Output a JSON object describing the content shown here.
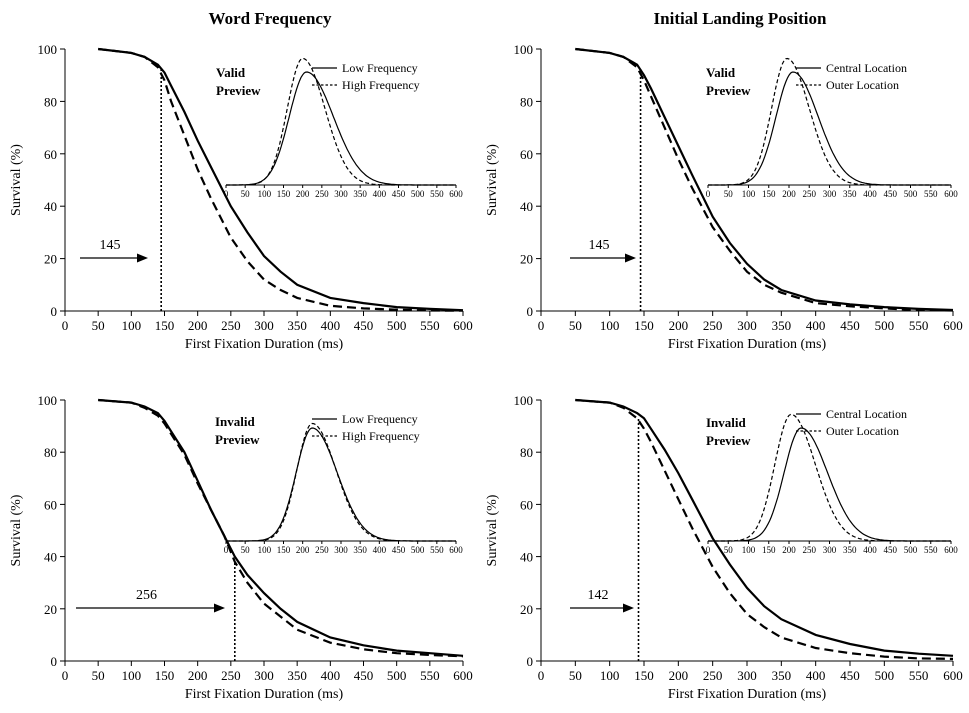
{
  "column_titles": [
    "Word Frequency",
    "Initial Landing Position"
  ],
  "chart_data": [
    {
      "type": "line",
      "xlabel": "First Fixation Duration (ms)",
      "ylabel": "Survival (%)",
      "xlim": [
        0,
        600
      ],
      "ylim": [
        0,
        100
      ],
      "xticks": [
        0,
        50,
        100,
        150,
        200,
        250,
        300,
        350,
        400,
        450,
        500,
        550,
        600
      ],
      "yticks": [
        0,
        20,
        40,
        60,
        80,
        100
      ],
      "condition": [
        "Valid",
        "Preview"
      ],
      "divergence_point": 145,
      "divergence_label": "145",
      "series": [
        {
          "name": "Low Frequency",
          "style": "solid",
          "x": [
            50,
            100,
            120,
            140,
            150,
            160,
            180,
            200,
            220,
            250,
            275,
            300,
            325,
            350,
            400,
            450,
            500,
            550,
            600
          ],
          "y": [
            100,
            98.5,
            97,
            94,
            91,
            86,
            76,
            65,
            55,
            40,
            30,
            21,
            15,
            10,
            5,
            3,
            1.5,
            0.8,
            0.3
          ]
        },
        {
          "name": "High Frequency",
          "style": "dashed",
          "x": [
            50,
            100,
            120,
            140,
            150,
            160,
            180,
            200,
            220,
            250,
            275,
            300,
            325,
            350,
            400,
            450,
            500,
            550,
            600
          ],
          "y": [
            100,
            98.5,
            97,
            93,
            88,
            80,
            67,
            54,
            43,
            28,
            19,
            12,
            8,
            5,
            2,
            1,
            0.5,
            0.2,
            0.1
          ]
        }
      ],
      "inset": {
        "xticks": [
          0,
          50,
          100,
          150,
          200,
          250,
          300,
          350,
          400,
          450,
          500,
          550,
          600
        ],
        "series": [
          {
            "name": "Low Frequency",
            "style": "solid",
            "mode": 210,
            "peak": 1.0,
            "sl": 45,
            "sr": 70
          },
          {
            "name": "High Frequency",
            "style": "dashed",
            "mode": 200,
            "peak": 1.12,
            "sl": 40,
            "sr": 58
          }
        ]
      }
    },
    {
      "type": "line",
      "xlabel": "First Fixation Duration (ms)",
      "ylabel": "Survival (%)",
      "xlim": [
        0,
        600
      ],
      "ylim": [
        0,
        100
      ],
      "xticks": [
        0,
        50,
        100,
        150,
        200,
        250,
        300,
        350,
        400,
        450,
        500,
        550,
        600
      ],
      "yticks": [
        0,
        20,
        40,
        60,
        80,
        100
      ],
      "condition": [
        "Valid",
        "Preview"
      ],
      "divergence_point": 145,
      "divergence_label": "145",
      "series": [
        {
          "name": "Central Location",
          "style": "solid",
          "x": [
            50,
            100,
            120,
            140,
            150,
            160,
            180,
            200,
            220,
            250,
            275,
            300,
            325,
            350,
            400,
            450,
            500,
            550,
            600
          ],
          "y": [
            100,
            98.5,
            97,
            94,
            90,
            85,
            74,
            63,
            52,
            36,
            26,
            18,
            12,
            8,
            4,
            2.5,
            1.5,
            0.8,
            0.4
          ]
        },
        {
          "name": "Outer Location",
          "style": "dashed",
          "x": [
            50,
            100,
            120,
            140,
            150,
            160,
            180,
            200,
            220,
            250,
            275,
            300,
            325,
            350,
            400,
            450,
            500,
            550,
            600
          ],
          "y": [
            100,
            98.5,
            97,
            93,
            88,
            82,
            70,
            58,
            47,
            32,
            23,
            15,
            10,
            7,
            3,
            1.8,
            1,
            0.4,
            0.2
          ]
        }
      ],
      "inset": {
        "xticks": [
          0,
          50,
          100,
          150,
          200,
          250,
          300,
          350,
          400,
          450,
          500,
          550,
          600
        ],
        "series": [
          {
            "name": "Central Location",
            "style": "solid",
            "mode": 210,
            "peak": 1.0,
            "sl": 42,
            "sr": 62
          },
          {
            "name": "Outer Location",
            "style": "dashed",
            "mode": 195,
            "peak": 1.12,
            "sl": 38,
            "sr": 55
          }
        ]
      }
    },
    {
      "type": "line",
      "xlabel": "First Fixation Duration (ms)",
      "ylabel": "Survival (%)",
      "xlim": [
        0,
        600
      ],
      "ylim": [
        0,
        100
      ],
      "xticks": [
        0,
        50,
        100,
        150,
        200,
        250,
        300,
        350,
        400,
        450,
        500,
        550,
        600
      ],
      "yticks": [
        0,
        20,
        40,
        60,
        80,
        100
      ],
      "condition": [
        "Invalid",
        "Preview"
      ],
      "divergence_point": 256,
      "divergence_label": "256",
      "series": [
        {
          "name": "Low Frequency",
          "style": "solid",
          "x": [
            50,
            100,
            120,
            140,
            150,
            160,
            180,
            200,
            220,
            240,
            256,
            275,
            300,
            325,
            350,
            400,
            450,
            500,
            550,
            600
          ],
          "y": [
            100,
            99,
            97.5,
            95,
            92,
            88,
            80,
            69,
            58,
            48,
            40,
            33,
            26,
            20,
            15,
            9,
            6,
            4,
            3,
            2
          ]
        },
        {
          "name": "High Frequency",
          "style": "dashed",
          "x": [
            50,
            100,
            120,
            140,
            150,
            160,
            180,
            200,
            220,
            240,
            256,
            275,
            300,
            325,
            350,
            400,
            450,
            500,
            550,
            600
          ],
          "y": [
            100,
            99,
            97,
            94,
            91,
            87,
            79,
            68,
            58,
            48,
            38,
            30,
            22,
            17,
            12,
            7,
            4.5,
            3,
            2.3,
            1.8
          ]
        }
      ],
      "inset": {
        "xticks": [
          0,
          50,
          100,
          150,
          200,
          250,
          300,
          350,
          400,
          450,
          500,
          550,
          600
        ],
        "series": [
          {
            "name": "Low Frequency",
            "style": "solid",
            "mode": 225,
            "peak": 1.0,
            "sl": 42,
            "sr": 65
          },
          {
            "name": "High Frequency",
            "style": "dashed",
            "mode": 225,
            "peak": 1.04,
            "sl": 40,
            "sr": 62
          }
        ]
      }
    },
    {
      "type": "line",
      "xlabel": "First Fixation Duration (ms)",
      "ylabel": "Survival (%)",
      "xlim": [
        0,
        600
      ],
      "ylim": [
        0,
        100
      ],
      "xticks": [
        0,
        50,
        100,
        150,
        200,
        250,
        300,
        350,
        400,
        450,
        500,
        550,
        600
      ],
      "yticks": [
        0,
        20,
        40,
        60,
        80,
        100
      ],
      "condition": [
        "Invalid",
        "Preview"
      ],
      "divergence_point": 142,
      "divergence_label": "142",
      "series": [
        {
          "name": "Central Location",
          "style": "solid",
          "x": [
            50,
            100,
            120,
            140,
            150,
            160,
            180,
            200,
            220,
            250,
            275,
            300,
            325,
            350,
            400,
            450,
            500,
            550,
            600
          ],
          "y": [
            100,
            99,
            97.5,
            95,
            93,
            89,
            81,
            72,
            62,
            47,
            37,
            28,
            21,
            16,
            10,
            6.5,
            4,
            2.8,
            2
          ]
        },
        {
          "name": "Outer Location",
          "style": "dashed",
          "x": [
            50,
            100,
            120,
            140,
            150,
            160,
            180,
            200,
            220,
            250,
            275,
            300,
            325,
            350,
            400,
            450,
            500,
            550,
            600
          ],
          "y": [
            100,
            99,
            97,
            93,
            89,
            84,
            73,
            62,
            51,
            36,
            26,
            18,
            13,
            9,
            5,
            3,
            1.7,
            1,
            0.8
          ]
        }
      ],
      "inset": {
        "xticks": [
          0,
          50,
          100,
          150,
          200,
          250,
          300,
          350,
          400,
          450,
          500,
          550,
          600
        ],
        "series": [
          {
            "name": "Central Location",
            "style": "solid",
            "mode": 230,
            "peak": 1.0,
            "sl": 42,
            "sr": 65
          },
          {
            "name": "Outer Location",
            "style": "dashed",
            "mode": 205,
            "peak": 1.12,
            "sl": 40,
            "sr": 60
          }
        ]
      }
    }
  ]
}
